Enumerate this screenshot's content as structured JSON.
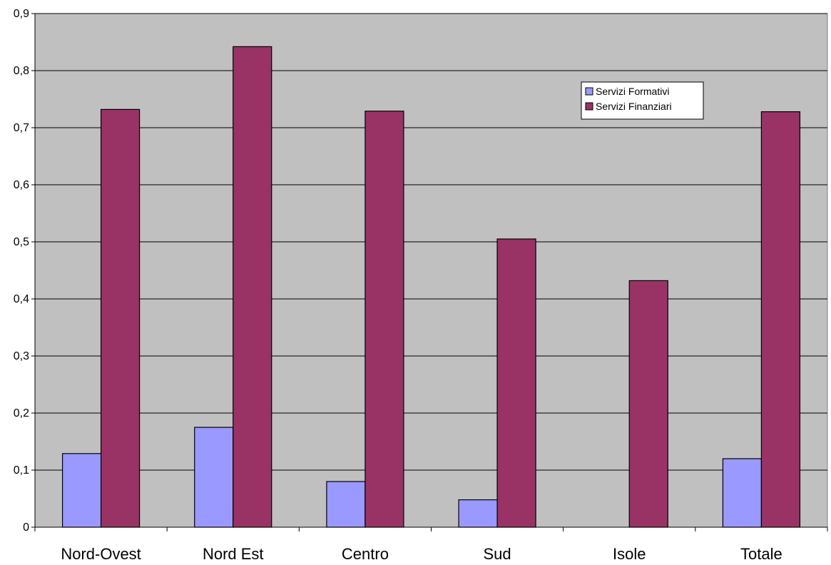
{
  "chart_data": {
    "type": "bar",
    "title": "",
    "xlabel": "",
    "ylabel": "",
    "categories": [
      "Nord-Ovest",
      "Nord Est",
      "Centro",
      "Sud",
      "Isole",
      "Totale"
    ],
    "series": [
      {
        "name": "Servizi Formativi",
        "color": "#9999ff",
        "values": [
          0.129,
          0.175,
          0.08,
          0.048,
          0,
          0.12
        ]
      },
      {
        "name": "Servizi Finanziari",
        "color": "#993366",
        "values": [
          0.732,
          0.842,
          0.729,
          0.505,
          0.432,
          0.728
        ]
      }
    ],
    "ylim": [
      0,
      0.9
    ],
    "yticks": [
      "0",
      "0,1",
      "0,2",
      "0,3",
      "0,4",
      "0,5",
      "0,6",
      "0,7",
      "0,8",
      "0,9"
    ],
    "grid": true,
    "legend_position": "top-right",
    "plot_background": "#c0c0c0"
  }
}
